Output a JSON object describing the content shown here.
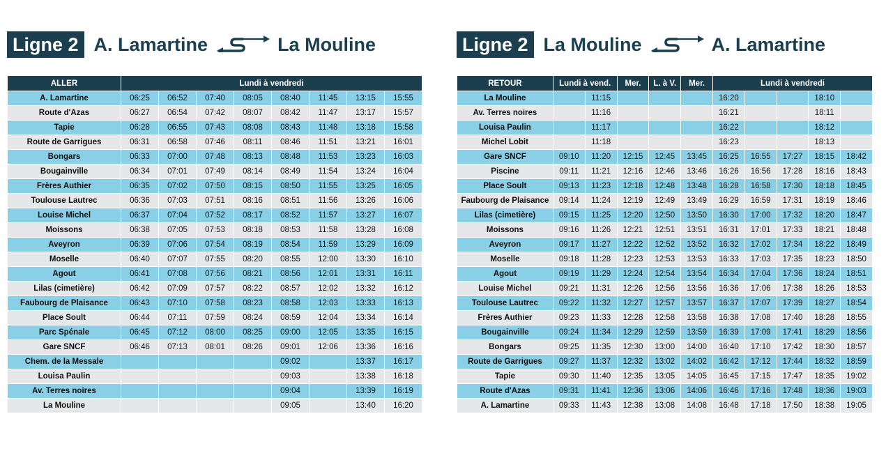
{
  "left": {
    "badge": "Ligne 2",
    "from": "A. Lamartine",
    "to": "La Mouline",
    "arrow_icon": "round-trip-arrow-icon",
    "header_first": "ALLER",
    "header_groups": [
      {
        "label": "Lundi à vendredi",
        "span": 8
      }
    ],
    "rows": [
      {
        "stop": "A. Lamartine",
        "times": [
          "06:25",
          "06:52",
          "07:40",
          "08:05",
          "08:40",
          "11:45",
          "13:15",
          "15:55"
        ]
      },
      {
        "stop": "Route d'Azas",
        "times": [
          "06:27",
          "06:54",
          "07:42",
          "08:07",
          "08:42",
          "11:47",
          "13:17",
          "15:57"
        ]
      },
      {
        "stop": "Tapie",
        "times": [
          "06:28",
          "06:55",
          "07:43",
          "08:08",
          "08:43",
          "11:48",
          "13:18",
          "15:58"
        ]
      },
      {
        "stop": "Route de Garrigues",
        "times": [
          "06:31",
          "06:58",
          "07:46",
          "08:11",
          "08:46",
          "11:51",
          "13:21",
          "16:01"
        ]
      },
      {
        "stop": "Bongars",
        "times": [
          "06:33",
          "07:00",
          "07:48",
          "08:13",
          "08:48",
          "11:53",
          "13:23",
          "16:03"
        ]
      },
      {
        "stop": "Bougainville",
        "times": [
          "06:34",
          "07:01",
          "07:49",
          "08:14",
          "08:49",
          "11:54",
          "13:24",
          "16:04"
        ]
      },
      {
        "stop": "Frères Authier",
        "times": [
          "06:35",
          "07:02",
          "07:50",
          "08:15",
          "08:50",
          "11:55",
          "13:25",
          "16:05"
        ]
      },
      {
        "stop": "Toulouse Lautrec",
        "times": [
          "06:36",
          "07:03",
          "07:51",
          "08:16",
          "08:51",
          "11:56",
          "13:26",
          "16:06"
        ]
      },
      {
        "stop": "Louise Michel",
        "times": [
          "06:37",
          "07:04",
          "07:52",
          "08:17",
          "08:52",
          "11:57",
          "13:27",
          "16:07"
        ]
      },
      {
        "stop": "Moissons",
        "times": [
          "06:38",
          "07:05",
          "07:53",
          "08:18",
          "08:53",
          "11:58",
          "13:28",
          "16:08"
        ]
      },
      {
        "stop": "Aveyron",
        "times": [
          "06:39",
          "07:06",
          "07:54",
          "08:19",
          "08:54",
          "11:59",
          "13:29",
          "16:09"
        ]
      },
      {
        "stop": "Moselle",
        "times": [
          "06:40",
          "07:07",
          "07:55",
          "08:20",
          "08:55",
          "12:00",
          "13:30",
          "16:10"
        ]
      },
      {
        "stop": "Agout",
        "times": [
          "06:41",
          "07:08",
          "07:56",
          "08:21",
          "08:56",
          "12:01",
          "13:31",
          "16:11"
        ]
      },
      {
        "stop": "Lilas (cimetière)",
        "times": [
          "06:42",
          "07:09",
          "07:57",
          "08:22",
          "08:57",
          "12:02",
          "13:32",
          "16:12"
        ]
      },
      {
        "stop": "Faubourg de Plaisance",
        "times": [
          "06:43",
          "07:10",
          "07:58",
          "08:23",
          "08:58",
          "12:03",
          "13:33",
          "16:13"
        ]
      },
      {
        "stop": "Place Soult",
        "times": [
          "06:44",
          "07:11",
          "07:59",
          "08:24",
          "08:59",
          "12:04",
          "13:34",
          "16:14"
        ]
      },
      {
        "stop": "Parc Spénale",
        "times": [
          "06:45",
          "07:12",
          "08:00",
          "08:25",
          "09:00",
          "12:05",
          "13:35",
          "16:15"
        ]
      },
      {
        "stop": "Gare SNCF",
        "times": [
          "06:46",
          "07:13",
          "08:01",
          "08:26",
          "09:01",
          "12:06",
          "13:36",
          "16:16"
        ]
      },
      {
        "stop": "Chem. de la Messale",
        "times": [
          "",
          "",
          "",
          "",
          "09:02",
          "",
          "13:37",
          "16:17"
        ]
      },
      {
        "stop": "Louisa Paulin",
        "times": [
          "",
          "",
          "",
          "",
          "09:03",
          "",
          "13:38",
          "16:18"
        ]
      },
      {
        "stop": "Av. Terres noires",
        "times": [
          "",
          "",
          "",
          "",
          "09:04",
          "",
          "13:39",
          "16:19"
        ]
      },
      {
        "stop": "La Mouline",
        "times": [
          "",
          "",
          "",
          "",
          "09:05",
          "",
          "13:40",
          "16:20"
        ]
      }
    ]
  },
  "right": {
    "badge": "Ligne 2",
    "from": "La Mouline",
    "to": "A. Lamartine",
    "arrow_icon": "round-trip-arrow-icon",
    "header_first": "RETOUR",
    "header_groups": [
      {
        "label": "Lundi à vend.",
        "span": 2
      },
      {
        "label": "Mer.",
        "span": 1
      },
      {
        "label": "L. à V.",
        "span": 1
      },
      {
        "label": "Mer.",
        "span": 1
      },
      {
        "label": "Lundi à vendredi",
        "span": 5
      }
    ],
    "rows": [
      {
        "stop": "La Mouline",
        "times": [
          "",
          "11:15",
          "",
          "",
          "",
          "16:20",
          "",
          "",
          "18:10",
          ""
        ]
      },
      {
        "stop": "Av. Terres noires",
        "times": [
          "",
          "11:16",
          "",
          "",
          "",
          "16:21",
          "",
          "",
          "18:11",
          ""
        ]
      },
      {
        "stop": "Louisa Paulin",
        "times": [
          "",
          "11:17",
          "",
          "",
          "",
          "16:22",
          "",
          "",
          "18:12",
          ""
        ]
      },
      {
        "stop": "Michel Lobit",
        "times": [
          "",
          "11:18",
          "",
          "",
          "",
          "16:23",
          "",
          "",
          "18:13",
          ""
        ]
      },
      {
        "stop": "Gare SNCF",
        "times": [
          "09:10",
          "11:20",
          "12:15",
          "12:45",
          "13:45",
          "16:25",
          "16:55",
          "17:27",
          "18:15",
          "18:42"
        ]
      },
      {
        "stop": "Piscine",
        "times": [
          "09:11",
          "11:21",
          "12:16",
          "12:46",
          "13:46",
          "16:26",
          "16:56",
          "17:28",
          "18:16",
          "18:43"
        ]
      },
      {
        "stop": "Place Soult",
        "times": [
          "09:13",
          "11:23",
          "12:18",
          "12:48",
          "13:48",
          "16:28",
          "16:58",
          "17:30",
          "18:18",
          "18:45"
        ]
      },
      {
        "stop": "Faubourg de Plaisance",
        "times": [
          "09:14",
          "11:24",
          "12:19",
          "12:49",
          "13:49",
          "16:29",
          "16:59",
          "17:31",
          "18:19",
          "18:46"
        ]
      },
      {
        "stop": "Lilas (cimetière)",
        "times": [
          "09:15",
          "11:25",
          "12:20",
          "12:50",
          "13:50",
          "16:30",
          "17:00",
          "17:32",
          "18:20",
          "18:47"
        ]
      },
      {
        "stop": "Moissons",
        "times": [
          "09:16",
          "11:26",
          "12:21",
          "12:51",
          "13:51",
          "16:31",
          "17:01",
          "17:33",
          "18:21",
          "18:48"
        ]
      },
      {
        "stop": "Aveyron",
        "times": [
          "09:17",
          "11:27",
          "12:22",
          "12:52",
          "13:52",
          "16:32",
          "17:02",
          "17:34",
          "18:22",
          "18:49"
        ]
      },
      {
        "stop": "Moselle",
        "times": [
          "09:18",
          "11:28",
          "12:23",
          "12:53",
          "13:53",
          "16:33",
          "17:03",
          "17:35",
          "18:23",
          "18:50"
        ]
      },
      {
        "stop": "Agout",
        "times": [
          "09:19",
          "11:29",
          "12:24",
          "12:54",
          "13:54",
          "16:34",
          "17:04",
          "17:36",
          "18:24",
          "18:51"
        ]
      },
      {
        "stop": "Louise Michel",
        "times": [
          "09:21",
          "11:31",
          "12:26",
          "12:56",
          "13:56",
          "16:36",
          "17:06",
          "17:38",
          "18:26",
          "18:53"
        ]
      },
      {
        "stop": "Toulouse Lautrec",
        "times": [
          "09:22",
          "11:32",
          "12:27",
          "12:57",
          "13:57",
          "16:37",
          "17:07",
          "17:39",
          "18:27",
          "18:54"
        ]
      },
      {
        "stop": "Frères Authier",
        "times": [
          "09:23",
          "11:33",
          "12:28",
          "12:58",
          "13:58",
          "16:38",
          "17:08",
          "17:40",
          "18:28",
          "18:55"
        ]
      },
      {
        "stop": "Bougainville",
        "times": [
          "09:24",
          "11:34",
          "12:29",
          "12:59",
          "13:59",
          "16:39",
          "17:09",
          "17:41",
          "18:29",
          "18:56"
        ]
      },
      {
        "stop": "Bongars",
        "times": [
          "09:25",
          "11:35",
          "12:30",
          "13:00",
          "14:00",
          "16:40",
          "17:10",
          "17:42",
          "18:30",
          "18:57"
        ]
      },
      {
        "stop": "Route de Garrigues",
        "times": [
          "09:27",
          "11:37",
          "12:32",
          "13:02",
          "14:02",
          "16:42",
          "17:12",
          "17:44",
          "18:32",
          "18:59"
        ]
      },
      {
        "stop": "Tapie",
        "times": [
          "09:30",
          "11:40",
          "12:35",
          "13:05",
          "14:05",
          "16:45",
          "17:15",
          "17:47",
          "18:35",
          "19:02"
        ]
      },
      {
        "stop": "Route d'Azas",
        "times": [
          "09:31",
          "11:41",
          "12:36",
          "13:06",
          "14:06",
          "16:46",
          "17:16",
          "17:48",
          "18:36",
          "19:03"
        ]
      },
      {
        "stop": "A. Lamartine",
        "times": [
          "09:33",
          "11:43",
          "12:38",
          "13:08",
          "14:08",
          "16:48",
          "17:18",
          "17:50",
          "18:38",
          "19:05"
        ]
      }
    ]
  },
  "colors": {
    "dark_teal": "#1b3f4f",
    "row_blue": "#89cfe5",
    "row_grey": "#e6e7e8"
  }
}
